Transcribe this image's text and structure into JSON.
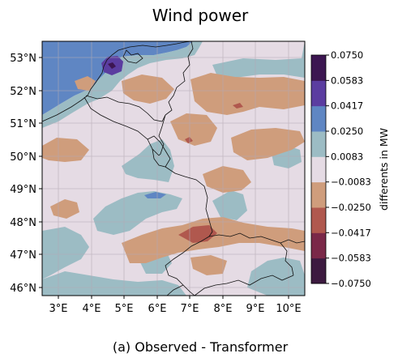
{
  "chart_data": {
    "type": "heatmap",
    "title": "Wind power",
    "caption": "(a) Observed - Transformer",
    "colorbar_label": "differents in MW",
    "x_ticks": [
      "3°E",
      "4°E",
      "5°E",
      "6°E",
      "7°E",
      "8°E",
      "9°E",
      "10°E"
    ],
    "x_tick_values": [
      3,
      4,
      5,
      6,
      7,
      8,
      9,
      10
    ],
    "y_ticks": [
      "53°N",
      "52°N",
      "51°N",
      "50°N",
      "49°N",
      "48°N",
      "47°N",
      "46°N"
    ],
    "y_tick_values": [
      53,
      52,
      51,
      50,
      49,
      48,
      47,
      46
    ],
    "xlim": [
      2.45,
      10.45
    ],
    "ylim": [
      45.75,
      53.5
    ],
    "colorbar_ticks": [
      "0.0750",
      "0.0583",
      "0.0417",
      "0.0250",
      "0.0083",
      "−0.0083",
      "−0.0250",
      "−0.0417",
      "−0.0583",
      "−0.0750"
    ],
    "colorbar_levels": [
      -0.075,
      -0.0583,
      -0.0417,
      -0.025,
      -0.0083,
      0.0083,
      0.025,
      0.0417,
      0.0583,
      0.075
    ],
    "colorbar_colors": [
      "#3d1a40",
      "#7a2848",
      "#b0584e",
      "#cf9d7c",
      "#e5dbe4",
      "#9cbcc4",
      "#5f86c3",
      "#5b3da0",
      "#3c1651"
    ],
    "grid": true,
    "background_level": [
      -0.0083,
      0.0083
    ],
    "regions": [
      {
        "level": "0.0250 to 0.0417",
        "color": "#5f86c3",
        "description": "North Sea offshore area"
      },
      {
        "level": "0.0417 to 0.0583",
        "color": "#5b3da0",
        "description": "patch near 52.7°N 4.7°E"
      },
      {
        "level": "0.0083 to 0.0250",
        "color": "#9cbcc4",
        "description": "scattered patches"
      },
      {
        "level": "−0.0250 to −0.0083",
        "color": "#cf9d7c",
        "description": "scattered patches"
      },
      {
        "level": "−0.0417 to −0.0250",
        "color": "#b0584e",
        "description": "patches near 47.3°N 7.5°E"
      }
    ]
  }
}
